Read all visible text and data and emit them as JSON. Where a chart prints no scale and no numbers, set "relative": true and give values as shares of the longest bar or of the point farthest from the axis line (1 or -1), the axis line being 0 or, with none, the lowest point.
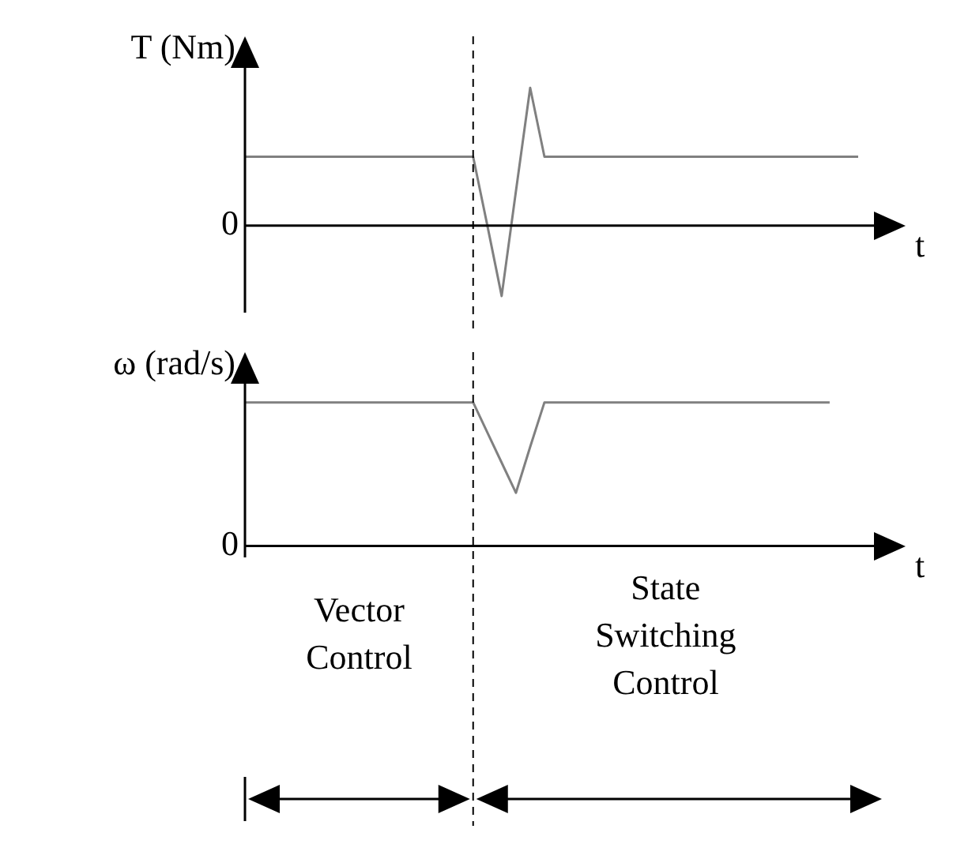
{
  "chart_data": [
    {
      "type": "line",
      "relative": true,
      "ylabel": "T (Nm)",
      "xlabel": "t",
      "marker": "none",
      "categories": [
        null,
        null,
        null,
        null,
        null,
        null,
        null,
        null,
        null,
        null,
        null,
        null,
        null,
        null,
        null,
        null,
        null,
        null,
        null,
        null,
        null,
        null,
        null,
        null,
        null,
        null,
        null,
        null,
        null,
        null,
        null,
        null,
        null,
        null,
        null,
        null,
        null,
        null,
        null,
        null,
        null,
        null,
        null,
        null
      ],
      "series": [
        {
          "color": "#808080",
          "values": [
            0.5,
            0.5,
            0.5,
            0.5,
            0.5,
            0.5,
            0.5,
            0.5,
            0.5,
            0.5,
            0.5,
            0.5,
            0.5,
            0.5,
            0.5,
            0.5,
            0.5,
            0,
            -0.51,
            0.25,
            1,
            0.5,
            0.5,
            0.5,
            0.5,
            0.5,
            0.5,
            0.5,
            0.5,
            0.5,
            0.5,
            0.5,
            0.5,
            0.5,
            0.5,
            0.5,
            0.5,
            0.5,
            0.5,
            0.5,
            0.5,
            0.5,
            0.5,
            0.5
          ]
        }
      ],
      "annotations": [
        "0"
      ]
    },
    {
      "type": "line",
      "relative": true,
      "ylabel": "ω (rad/s)",
      "xlabel": "t",
      "marker": "none",
      "categories": [
        null,
        null,
        null,
        null,
        null,
        null,
        null,
        null,
        null,
        null,
        null,
        null,
        null,
        null,
        null,
        null,
        null,
        null,
        null,
        null,
        null,
        null,
        null,
        null,
        null,
        null,
        null,
        null,
        null,
        null,
        null,
        null,
        null,
        null,
        null,
        null,
        null,
        null,
        null,
        null,
        null,
        null,
        null,
        null
      ],
      "series": [
        {
          "color": "#808080",
          "values": [
            1,
            1,
            1,
            1,
            1,
            1,
            1,
            1,
            1,
            1,
            1,
            1,
            1,
            1,
            1,
            1,
            1,
            0.79,
            0.58,
            0.37,
            0.69,
            1,
            1,
            1,
            1,
            1,
            1,
            1,
            1,
            1,
            1,
            1,
            1,
            1,
            1,
            1,
            1,
            1,
            1,
            1,
            1,
            1,
            null,
            null
          ]
        }
      ],
      "annotations": [
        "0",
        "Vector Control",
        "State Switching Control"
      ]
    }
  ]
}
